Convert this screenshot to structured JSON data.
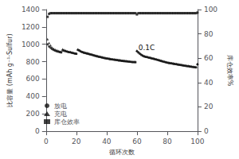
{
  "chart_data": {
    "type": "scatter",
    "xlabel": "循环次数",
    "ylabel": "比容量 (mAh g⁻¹·Sulfur)",
    "y2label": "库仓效率%",
    "annotations": [
      {
        "text": "0.1C",
        "x": 61,
        "y": 960,
        "color": "#111111"
      }
    ],
    "xlim": [
      0,
      100
    ],
    "ylim": [
      0,
      1400
    ],
    "y2lim": [
      0,
      100
    ],
    "xticks": [
      0,
      20,
      40,
      60,
      80,
      100
    ],
    "yticks": [
      0,
      200,
      400,
      600,
      800,
      1000,
      1200,
      1400
    ],
    "y2ticks": [
      0,
      20,
      40,
      60,
      80,
      100
    ],
    "grid": false,
    "legend": "lower left",
    "x": [
      1,
      2,
      3,
      4,
      5,
      6,
      7,
      8,
      9,
      10,
      11,
      12,
      13,
      14,
      15,
      16,
      17,
      18,
      19,
      20,
      21,
      22,
      23,
      24,
      25,
      26,
      27,
      28,
      29,
      30,
      31,
      32,
      33,
      34,
      35,
      36,
      37,
      38,
      39,
      40,
      41,
      42,
      43,
      44,
      45,
      46,
      47,
      48,
      49,
      50,
      51,
      52,
      53,
      54,
      55,
      56,
      57,
      58,
      59,
      60,
      61,
      62,
      63,
      64,
      65,
      66,
      67,
      68,
      69,
      70,
      71,
      72,
      73,
      74,
      75,
      76,
      77,
      78,
      79,
      80,
      81,
      82,
      83,
      84,
      85,
      86,
      87,
      88,
      89,
      90,
      91,
      92,
      93,
      94,
      95,
      96,
      97,
      98,
      99,
      100
    ],
    "series": [
      {
        "name": "放电",
        "color": "#111111",
        "marker": "circle",
        "values": [
          1000,
          975,
          960,
          945,
          935,
          927,
          920,
          915,
          910,
          907,
          930,
          925,
          920,
          915,
          910,
          908,
          904,
          900,
          895,
          892,
          935,
          928,
          918,
          910,
          905,
          900,
          896,
          891,
          886,
          882,
          877,
          872,
          867,
          862,
          858,
          854,
          850,
          845,
          842,
          838,
          835,
          832,
          829,
          826,
          824,
          821,
          819,
          816,
          814,
          811,
          809,
          807,
          805,
          803,
          801,
          799,
          797,
          796,
          796,
          920,
          905,
          890,
          878,
          868,
          860,
          856,
          852,
          847,
          843,
          838,
          834,
          829,
          824,
          819,
          814,
          809,
          804,
          799,
          794,
          789,
          786,
          783,
          780,
          777,
          774,
          771,
          768,
          765,
          762,
          759,
          756,
          753,
          750,
          748,
          745,
          742,
          740,
          737,
          735,
          770
        ]
      },
      {
        "name": "充电",
        "color": "#111111",
        "marker": "triangle",
        "values": [
          1060,
          1015,
          988,
          963,
          950,
          940,
          933,
          927,
          921,
          915,
          944,
          937,
          929,
          921,
          915,
          912,
          907,
          902,
          897,
          893,
          942,
          933,
          921,
          912,
          907,
          902,
          897,
          892,
          888,
          883,
          878,
          873,
          868,
          863,
          859,
          855,
          851,
          846,
          843,
          840,
          837,
          834,
          831,
          828,
          826,
          823,
          821,
          818,
          816,
          813,
          811,
          809,
          807,
          805,
          803,
          801,
          799,
          798,
          797,
          928,
          912,
          896,
          882,
          872,
          863,
          859,
          855,
          850,
          846,
          841,
          837,
          832,
          828,
          823,
          818,
          813,
          808,
          803,
          798,
          793,
          790,
          787,
          784,
          781,
          778,
          775,
          772,
          769,
          766,
          763,
          760,
          757,
          754,
          752,
          749,
          746,
          744,
          741,
          739,
          774
        ]
      },
      {
        "name": "库仓效率",
        "color": "#111111",
        "marker": "square",
        "axis": "y2",
        "values": [
          94,
          96.5,
          97,
          97,
          97,
          97,
          97,
          97,
          97,
          97,
          97,
          97,
          97,
          97,
          97,
          97,
          97,
          97,
          97,
          97,
          97,
          97,
          97,
          97,
          97,
          97,
          97,
          97,
          97,
          97,
          97,
          97,
          97,
          97,
          97,
          97,
          97,
          97,
          97,
          97,
          97,
          97,
          97,
          97,
          97,
          97,
          97,
          97,
          97,
          97,
          97,
          97,
          97,
          97,
          97,
          97,
          97,
          97,
          97,
          96,
          97,
          97,
          97,
          97,
          97,
          97,
          97,
          97,
          97,
          97,
          97,
          97,
          97,
          97,
          97,
          97,
          97,
          97,
          97,
          97,
          97,
          97,
          97,
          97,
          97,
          97,
          97,
          97,
          97,
          97,
          97,
          97,
          97,
          97,
          97,
          97,
          97,
          97,
          97,
          97.5
        ]
      }
    ]
  }
}
